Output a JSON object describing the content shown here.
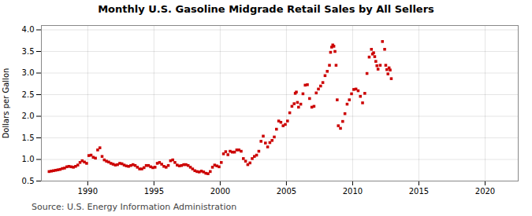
{
  "chart_data": {
    "type": "scatter",
    "title": "Monthly U.S. Gasoline Midgrade Retail Sales by All Sellers",
    "ylabel": "Dollars per Gallon",
    "annotations": [
      "Source: U.S. Energy Information Administration"
    ],
    "xlim": [
      1986.5,
      2022.5
    ],
    "ylim": [
      0.5,
      4.1
    ],
    "xticks": [
      1990,
      1995,
      2000,
      2005,
      2010,
      2015,
      2020
    ],
    "yticks": [
      0.5,
      {
        "value": 1.0,
        "label": "1.0"
      },
      1.5,
      {
        "value": 2.0,
        "label": "2.0"
      },
      2.5,
      {
        "value": 3.0,
        "label": "3.0"
      },
      3.5,
      {
        "value": 4.0,
        "label": "4.0"
      }
    ],
    "grid": true,
    "color": "#cc0000",
    "marker": "square",
    "x": [
      1987.083,
      1987.25,
      1987.417,
      1987.583,
      1987.75,
      1987.917,
      1988.083,
      1988.25,
      1988.417,
      1988.583,
      1988.75,
      1988.917,
      1989.083,
      1989.25,
      1989.417,
      1989.583,
      1989.75,
      1989.917,
      1990.083,
      1990.25,
      1990.417,
      1990.583,
      1990.75,
      1990.917,
      1991.083,
      1991.25,
      1991.417,
      1991.583,
      1991.75,
      1991.917,
      1992.083,
      1992.25,
      1992.417,
      1992.583,
      1992.75,
      1992.917,
      1993.083,
      1993.25,
      1993.417,
      1993.583,
      1993.75,
      1993.917,
      1994.083,
      1994.25,
      1994.417,
      1994.583,
      1994.75,
      1994.917,
      1995.083,
      1995.25,
      1995.417,
      1995.583,
      1995.75,
      1995.917,
      1996.083,
      1996.25,
      1996.417,
      1996.583,
      1996.75,
      1996.917,
      1997.083,
      1997.25,
      1997.417,
      1997.583,
      1997.75,
      1997.917,
      1998.083,
      1998.25,
      1998.417,
      1998.583,
      1998.75,
      1998.917,
      1999.083,
      1999.25,
      1999.417,
      1999.583,
      1999.75,
      1999.917,
      2000.083,
      2000.25,
      2000.417,
      2000.583,
      2000.75,
      2000.917,
      2001.083,
      2001.25,
      2001.417,
      2001.583,
      2001.75,
      2001.917,
      2002.083,
      2002.25,
      2002.417,
      2002.583,
      2002.75,
      2002.917,
      2003.083,
      2003.25,
      2003.417,
      2003.583,
      2003.75,
      2003.917,
      2004.083,
      2004.25,
      2004.417,
      2004.583,
      2004.75,
      2004.917,
      2005.083,
      2005.25,
      2005.417,
      2005.583,
      2005.667,
      2005.75,
      2005.833,
      2005.917,
      2006.083,
      2006.25,
      2006.417,
      2006.583,
      2006.75,
      2006.917,
      2007.083,
      2007.25,
      2007.417,
      2007.583,
      2007.75,
      2007.917,
      2008.083,
      2008.25,
      2008.333,
      2008.417,
      2008.5,
      2008.583,
      2008.667,
      2008.75,
      2008.833,
      2008.917,
      2009.083,
      2009.25,
      2009.417,
      2009.583,
      2009.75,
      2009.917,
      2010.083,
      2010.25,
      2010.417,
      2010.583,
      2010.75,
      2010.917,
      2011.083,
      2011.25,
      2011.417,
      2011.5,
      2011.583,
      2011.667,
      2011.75,
      2011.833,
      2011.917,
      2012.083,
      2012.25,
      2012.417,
      2012.5,
      2012.583,
      2012.667,
      2012.75,
      2012.833,
      2012.917
    ],
    "values": [
      0.72,
      0.73,
      0.74,
      0.75,
      0.76,
      0.77,
      0.79,
      0.8,
      0.83,
      0.84,
      0.83,
      0.82,
      0.84,
      0.87,
      0.93,
      0.97,
      0.94,
      0.91,
      1.09,
      1.1,
      1.05,
      1.03,
      1.22,
      1.27,
      1.07,
      0.99,
      0.96,
      0.94,
      0.91,
      0.89,
      0.87,
      0.88,
      0.91,
      0.9,
      0.87,
      0.85,
      0.84,
      0.86,
      0.88,
      0.86,
      0.82,
      0.78,
      0.78,
      0.81,
      0.86,
      0.86,
      0.83,
      0.81,
      0.82,
      0.91,
      0.93,
      0.89,
      0.84,
      0.82,
      0.86,
      0.97,
      0.99,
      0.93,
      0.87,
      0.85,
      0.86,
      0.88,
      0.88,
      0.86,
      0.82,
      0.78,
      0.74,
      0.72,
      0.71,
      0.73,
      0.71,
      0.68,
      0.67,
      0.72,
      0.82,
      0.87,
      0.85,
      0.83,
      0.93,
      1.13,
      1.18,
      1.11,
      1.19,
      1.17,
      1.17,
      1.22,
      1.22,
      1.19,
      1.02,
      0.96,
      0.88,
      0.92,
      1.02,
      1.07,
      1.1,
      1.19,
      1.42,
      1.54,
      1.38,
      1.29,
      1.39,
      1.44,
      1.52,
      1.7,
      1.89,
      1.86,
      1.78,
      1.81,
      1.89,
      2.08,
      2.23,
      2.29,
      2.53,
      2.56,
      2.32,
      2.21,
      2.28,
      2.52,
      2.72,
      2.73,
      2.41,
      2.21,
      2.23,
      2.54,
      2.63,
      2.7,
      2.78,
      2.94,
      3.04,
      3.18,
      3.48,
      3.6,
      3.65,
      3.62,
      3.5,
      3.18,
      2.38,
      1.78,
      1.72,
      1.88,
      2.06,
      2.28,
      2.38,
      2.52,
      2.62,
      2.63,
      2.59,
      2.46,
      2.31,
      2.53,
      2.99,
      3.37,
      3.55,
      3.44,
      3.47,
      3.38,
      3.27,
      3.17,
      3.09,
      3.18,
      3.73,
      3.55,
      3.18,
      3.08,
      2.98,
      3.12,
      3.07,
      2.87
    ]
  }
}
